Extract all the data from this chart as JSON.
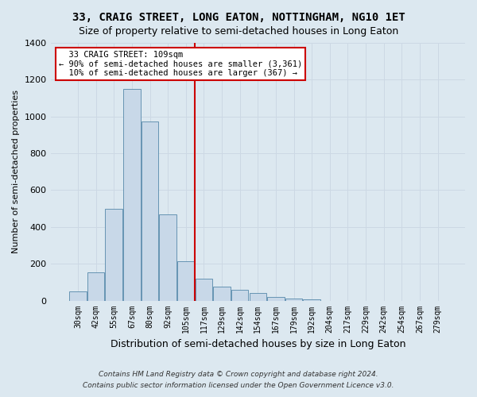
{
  "title": "33, CRAIG STREET, LONG EATON, NOTTINGHAM, NG10 1ET",
  "subtitle": "Size of property relative to semi-detached houses in Long Eaton",
  "xlabel": "Distribution of semi-detached houses by size in Long Eaton",
  "ylabel": "Number of semi-detached properties",
  "footer_line1": "Contains HM Land Registry data © Crown copyright and database right 2024.",
  "footer_line2": "Contains public sector information licensed under the Open Government Licence v3.0.",
  "bar_categories": [
    "30sqm",
    "42sqm",
    "55sqm",
    "67sqm",
    "80sqm",
    "92sqm",
    "105sqm",
    "117sqm",
    "129sqm",
    "142sqm",
    "154sqm",
    "167sqm",
    "179sqm",
    "192sqm",
    "204sqm",
    "217sqm",
    "229sqm",
    "242sqm",
    "254sqm",
    "267sqm",
    "279sqm"
  ],
  "bar_values": [
    50,
    155,
    500,
    1150,
    975,
    470,
    215,
    120,
    75,
    60,
    40,
    20,
    10,
    5,
    0,
    0,
    0,
    0,
    0,
    0,
    0
  ],
  "bar_color": "#c8d8e8",
  "bar_edge_color": "#5588aa",
  "property_label": "33 CRAIG STREET: 109sqm",
  "pct_smaller": 90,
  "n_smaller": 3361,
  "pct_larger": 10,
  "n_larger": 367,
  "vline_x_index": 6.5,
  "annotation_box_color": "#ffffff",
  "annotation_box_edge": "#cc0000",
  "grid_color": "#ccd8e4",
  "background_color": "#dce8f0",
  "ylim": [
    0,
    1400
  ],
  "yticks": [
    0,
    200,
    400,
    600,
    800,
    1000,
    1200,
    1400
  ]
}
